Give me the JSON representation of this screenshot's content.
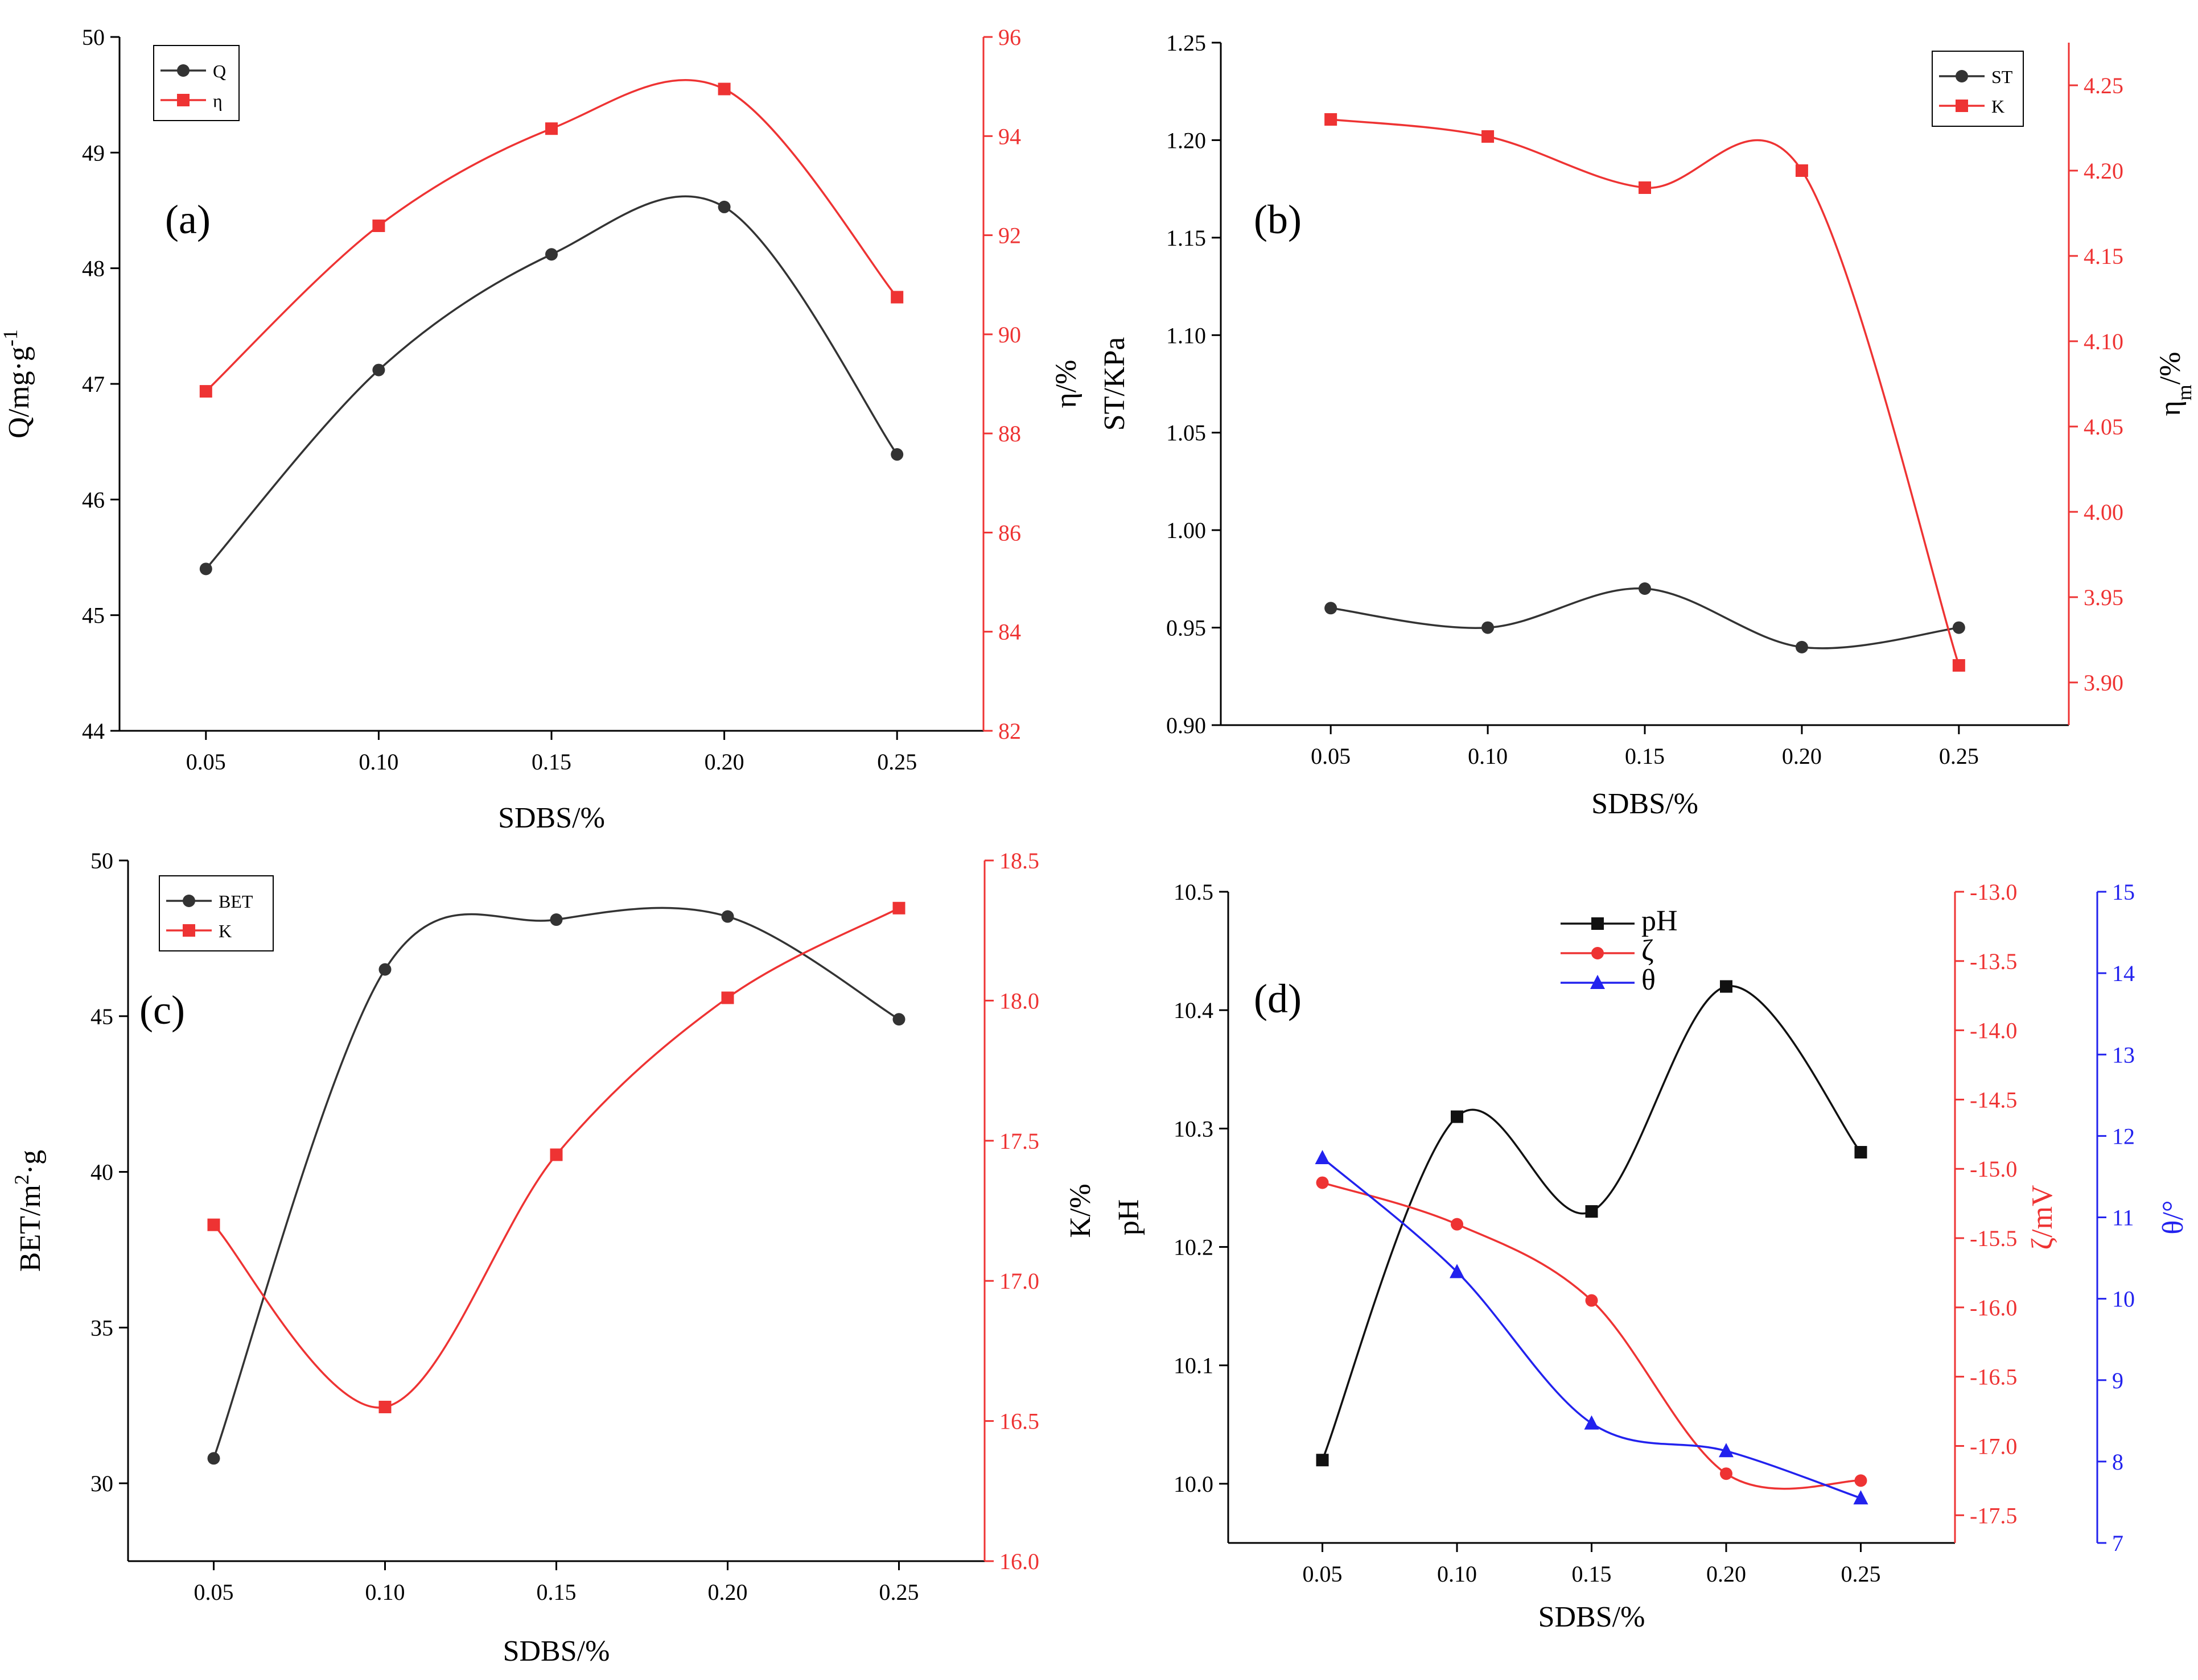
{
  "figure": {
    "colors": {
      "black": "#333333",
      "red": "#ee3333",
      "blue": "#2222ee",
      "pH_black": "#111111"
    }
  },
  "chart_data": [
    {
      "panel_label": "(a)",
      "type": "line",
      "x": [
        0.05,
        0.1,
        0.15,
        0.2,
        0.25
      ],
      "x_tick_labels": [
        "0.05",
        "0.10",
        "0.15",
        "0.20",
        "0.25"
      ],
      "xlabel": "SDBS/%",
      "xlim": [
        0.025,
        0.275
      ],
      "y_axes": [
        {
          "id": "left",
          "label_base": "Q/mg·g",
          "label_sup": "-1",
          "lim": [
            44,
            50
          ],
          "ticks": [
            44,
            45,
            46,
            47,
            48,
            49,
            50
          ],
          "tick_labels": [
            "44",
            "45",
            "46",
            "47",
            "48",
            "49",
            "50"
          ],
          "color": "#000000"
        },
        {
          "id": "right",
          "label_base": "η/%",
          "label_sup": "",
          "lim": [
            82,
            96
          ],
          "ticks": [
            82,
            84,
            86,
            88,
            90,
            92,
            94,
            96
          ],
          "tick_labels": [
            "82",
            "84",
            "86",
            "88",
            "90",
            "92",
            "94",
            "96"
          ],
          "color": "#ee3333"
        }
      ],
      "series": [
        {
          "name": "Q",
          "axis": "left",
          "color": "#333333",
          "marker": "circle",
          "values": [
            45.4,
            47.12,
            48.12,
            48.53,
            46.39
          ]
        },
        {
          "name": "η",
          "axis": "right",
          "color": "#ee3333",
          "marker": "square",
          "values": [
            88.85,
            92.19,
            94.15,
            94.95,
            90.75
          ]
        }
      ],
      "legend": "top-left"
    },
    {
      "panel_label": "(b)",
      "type": "line",
      "x": [
        0.05,
        0.1,
        0.15,
        0.2,
        0.25
      ],
      "x_tick_labels": [
        "0.05",
        "0.10",
        "0.15",
        "0.20",
        "0.25"
      ],
      "xlabel": "SDBS/%",
      "xlim": [
        0.015,
        0.285
      ],
      "y_axes": [
        {
          "id": "left",
          "label_base": "ST/KPa",
          "label_sup": "",
          "lim": [
            0.9,
            1.25
          ],
          "ticks": [
            0.9,
            0.95,
            1.0,
            1.05,
            1.1,
            1.15,
            1.2,
            1.25
          ],
          "tick_labels": [
            "0.90",
            "0.95",
            "1.00",
            "1.05",
            "1.10",
            "1.15",
            "1.20",
            "1.25"
          ],
          "color": "#000000"
        },
        {
          "id": "right",
          "label_base": "η",
          "label_sub": "m",
          "label_tail": "/%",
          "lim": [
            3.875,
            4.275
          ],
          "ticks": [
            3.9,
            3.95,
            4.0,
            4.05,
            4.1,
            4.15,
            4.2,
            4.25
          ],
          "tick_labels": [
            "3.90",
            "3.95",
            "4.00",
            "4.05",
            "4.10",
            "4.15",
            "4.20",
            "4.25"
          ],
          "color": "#ee3333"
        }
      ],
      "series": [
        {
          "name": "ST",
          "axis": "left",
          "color": "#333333",
          "marker": "circle",
          "values": [
            0.96,
            0.95,
            0.97,
            0.94,
            0.95
          ]
        },
        {
          "name": "K",
          "axis": "right",
          "color": "#ee3333",
          "marker": "square",
          "values": [
            4.23,
            4.22,
            4.19,
            4.2,
            3.91
          ]
        }
      ],
      "legend": "top-right"
    },
    {
      "panel_label": "(c)",
      "type": "line",
      "x": [
        0.05,
        0.1,
        0.15,
        0.2,
        0.25
      ],
      "x_tick_labels": [
        "0.05",
        "0.10",
        "0.15",
        "0.20",
        "0.25"
      ],
      "xlabel": "SDBS/%",
      "xlim": [
        0.025,
        0.275
      ],
      "y_axes": [
        {
          "id": "left",
          "label_base": "BET/m",
          "label_sup": "2",
          "label_tail": "·g",
          "lim": [
            27.5,
            50
          ],
          "ticks": [
            30,
            35,
            40,
            45,
            50
          ],
          "tick_labels": [
            "30",
            "35",
            "40",
            "45",
            "50"
          ],
          "color": "#000000"
        },
        {
          "id": "right",
          "label_base": "K/%",
          "label_sup": "",
          "lim": [
            16.0,
            18.5
          ],
          "ticks": [
            16.0,
            16.5,
            17.0,
            17.5,
            18.0,
            18.5
          ],
          "tick_labels": [
            "16.0",
            "16.5",
            "17.0",
            "17.5",
            "18.0",
            "18.5"
          ],
          "color": "#ee3333"
        }
      ],
      "series": [
        {
          "name": "BET",
          "axis": "left",
          "color": "#333333",
          "marker": "circle",
          "values": [
            30.8,
            46.5,
            48.1,
            48.2,
            44.9
          ]
        },
        {
          "name": "K",
          "axis": "right",
          "color": "#ee3333",
          "marker": "square",
          "values": [
            17.2,
            16.55,
            17.45,
            18.01,
            18.33
          ]
        }
      ],
      "legend": "top-left"
    },
    {
      "panel_label": "(d)",
      "type": "line",
      "x": [
        0.05,
        0.1,
        0.15,
        0.2,
        0.25
      ],
      "x_tick_labels": [
        "0.05",
        "0.10",
        "0.15",
        "0.20",
        "0.25"
      ],
      "xlabel": "SDBS/%",
      "xlim": [
        0.015,
        0.285
      ],
      "y_axes": [
        {
          "id": "left",
          "label_base": "pH",
          "label_sup": "",
          "lim": [
            9.95,
            10.5
          ],
          "ticks": [
            10.0,
            10.1,
            10.2,
            10.3,
            10.4,
            10.5
          ],
          "tick_labels": [
            "10.0",
            "10.1",
            "10.2",
            "10.3",
            "10.4",
            "10.5"
          ],
          "color": "#000000"
        },
        {
          "id": "right",
          "label_base": "ζ/mV",
          "label_sup": "",
          "lim": [
            -17.7,
            -13.0
          ],
          "ticks": [
            -17.5,
            -17.0,
            -16.5,
            -16.0,
            -15.5,
            -15.0,
            -14.5,
            -14.0,
            -13.5,
            -13.0
          ],
          "tick_labels": [
            "-17.5",
            "-17.0",
            "-16.5",
            "-16.0",
            "-15.5",
            "-15.0",
            "-14.5",
            "-14.0",
            "-13.5",
            "-13.0"
          ],
          "color": "#ee3333"
        },
        {
          "id": "right2",
          "label_base": "θ/°",
          "label_sup": "",
          "lim": [
            7,
            15
          ],
          "ticks": [
            7,
            8,
            9,
            10,
            11,
            12,
            13,
            14,
            15
          ],
          "tick_labels": [
            "7",
            "8",
            "9",
            "10",
            "11",
            "12",
            "13",
            "14",
            "15"
          ],
          "color": "#2222ee"
        }
      ],
      "series": [
        {
          "name": "pH",
          "axis": "left",
          "color": "#111111",
          "marker": "square",
          "values": [
            10.02,
            10.31,
            10.23,
            10.42,
            10.28
          ]
        },
        {
          "name": "ζ",
          "axis": "right",
          "color": "#ee3333",
          "marker": "circle",
          "values": [
            -15.1,
            -15.4,
            -15.95,
            -17.2,
            -17.25
          ]
        },
        {
          "name": "θ",
          "axis": "right2",
          "color": "#2222ee",
          "marker": "triangle",
          "values": [
            11.73,
            10.33,
            8.47,
            8.13,
            7.55
          ]
        }
      ],
      "legend": "top-center"
    }
  ]
}
